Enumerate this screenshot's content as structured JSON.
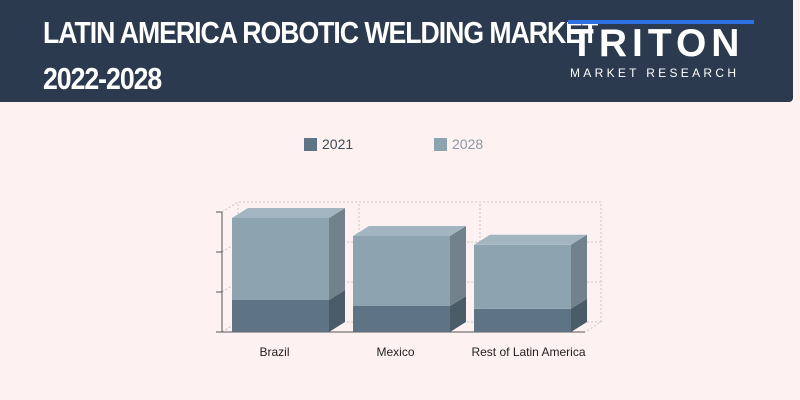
{
  "header": {
    "title_line1": "LATIN AMERICA ROBOTIC WELDING MARKET",
    "title_line2": "2022-2028"
  },
  "logo": {
    "word": "TRITON",
    "subtitle": "MARKET RESEARCH"
  },
  "colors": {
    "header_bg": "#2b3a4e",
    "page_bg": "#fdf1f1",
    "series_2021": "#5e7383",
    "series_2028": "#8ea3b0",
    "logo_accent": "#2f6fe4"
  },
  "chart_data": {
    "type": "bar",
    "stacked": true,
    "three_d": true,
    "categories": [
      "Brazil",
      "Mexico",
      "Rest of Latin America"
    ],
    "series": [
      {
        "name": "2021",
        "values": [
          0.8,
          0.65,
          0.58
        ]
      },
      {
        "name": "2028",
        "values": [
          2.05,
          1.75,
          1.6
        ]
      }
    ],
    "ylim": [
      0,
      3
    ],
    "grid": true,
    "legend_position": "top"
  }
}
